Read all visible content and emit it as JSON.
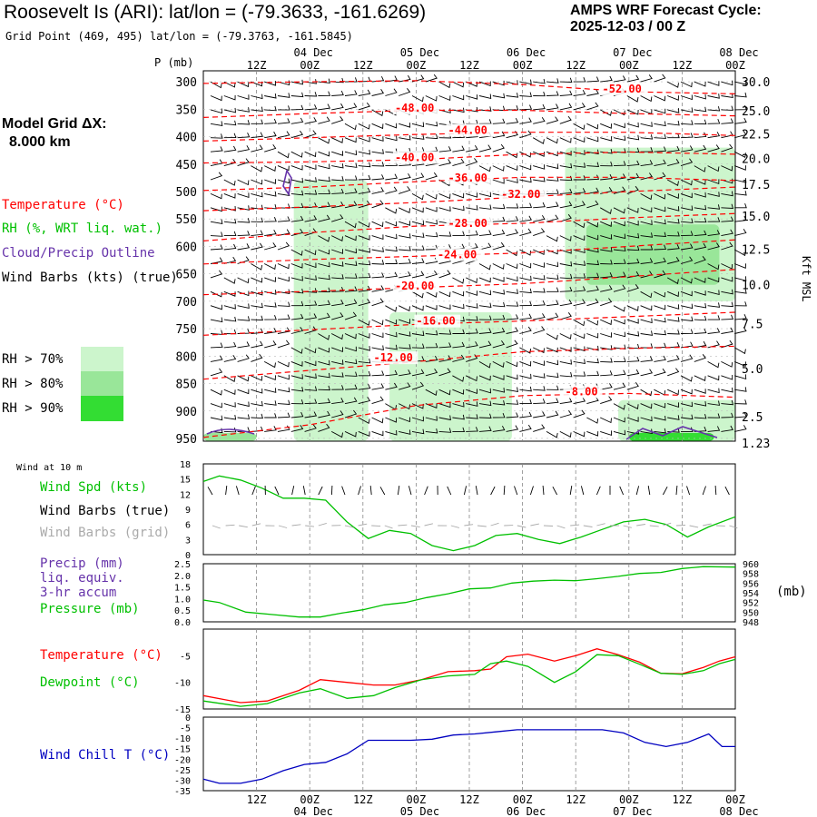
{
  "header": {
    "title": "Roosevelt Is (ARI):  lat/lon = (-79.3633, -161.6269)",
    "grid_point": "Grid Point (469, 495) lat/lon = (-79.3763, -161.5845)",
    "forecast_label": "AMPS WRF Forecast Cycle:",
    "forecast_cycle": "2025-12-03 / 00  Z",
    "model_grid_label": "Model Grid ΔX:",
    "model_grid_value": "8.000 km"
  },
  "colors": {
    "temperature": "#ff0000",
    "rh": "#00c000",
    "cloud": "#6633aa",
    "windchill": "#0000c0",
    "grid": "#888888",
    "rh70": "#ccf5cc",
    "rh80": "#99e699",
    "rh90": "#33dd33"
  },
  "legend": {
    "temperature": "Temperature (°C)",
    "rh": "RH (%, WRT liq. wat.)",
    "cloud": "Cloud/Precip Outline",
    "wind": "Wind Barbs (kts) (true)",
    "rh70": "RH > 70%",
    "rh80": "RH > 80%",
    "rh90": "RH > 90%"
  },
  "time_axis": {
    "ticks": [
      "12Z",
      "00Z",
      "12Z",
      "00Z",
      "12Z",
      "00Z",
      "12Z",
      "00Z",
      "12Z",
      "00Z"
    ],
    "dates": [
      "04 Dec",
      "05 Dec",
      "06 Dec",
      "07 Dec",
      "08 Dec"
    ]
  },
  "chart_data": [
    {
      "type": "line",
      "panel": "cross-section",
      "ylabel": "P (mb)",
      "right_label": "Kft MSL",
      "pressure_ticks": [
        300,
        350,
        400,
        450,
        500,
        550,
        600,
        650,
        700,
        750,
        800,
        850,
        900,
        950
      ],
      "height_ticks": [
        "30.0",
        "25.0",
        "22.5",
        "20.0",
        "17.5",
        "15.0",
        "12.5",
        "10.0",
        "7.5",
        "5.0",
        "2.5",
        "1.23"
      ],
      "isotherm_labels": [
        {
          "text": "-52.00",
          "t": 0.75,
          "p": 318
        },
        {
          "text": "-48.00",
          "t": 0.36,
          "p": 353
        },
        {
          "text": "-44.00",
          "t": 0.46,
          "p": 393
        },
        {
          "text": "-40.00",
          "t": 0.36,
          "p": 443
        },
        {
          "text": "-36.00",
          "t": 0.46,
          "p": 480
        },
        {
          "text": "-32.00",
          "t": 0.56,
          "p": 510
        },
        {
          "text": "-28.00",
          "t": 0.46,
          "p": 563
        },
        {
          "text": "-24.00",
          "t": 0.44,
          "p": 620
        },
        {
          "text": "-20.00",
          "t": 0.36,
          "p": 677
        },
        {
          "text": "-16.00",
          "t": 0.4,
          "p": 741
        },
        {
          "text": "-12.00",
          "t": 0.32,
          "p": 808
        },
        {
          "text": "-8.00",
          "t": 0.68,
          "p": 870
        }
      ],
      "series": [
        {
          "name": "-52",
          "t": [
            0,
            0.2,
            0.4,
            0.6,
            0.8,
            1.0
          ],
          "p": [
            303,
            300,
            298,
            305,
            318,
            322
          ]
        },
        {
          "name": "-48",
          "t": [
            0,
            0.2,
            0.4,
            0.6,
            0.8,
            1.0
          ],
          "p": [
            365,
            358,
            352,
            352,
            358,
            362
          ]
        },
        {
          "name": "-44",
          "t": [
            0,
            0.2,
            0.4,
            0.6,
            0.8,
            1.0
          ],
          "p": [
            408,
            402,
            396,
            392,
            392,
            398
          ]
        },
        {
          "name": "-40",
          "t": [
            0,
            0.2,
            0.4,
            0.6,
            0.8,
            1.0
          ],
          "p": [
            448,
            446,
            442,
            432,
            428,
            432
          ]
        },
        {
          "name": "-36",
          "t": [
            0,
            0.2,
            0.4,
            0.6,
            0.8,
            1.0
          ],
          "p": [
            498,
            492,
            482,
            474,
            474,
            480
          ]
        },
        {
          "name": "-32",
          "t": [
            0,
            0.2,
            0.4,
            0.6,
            0.8,
            1.0
          ],
          "p": [
            535,
            528,
            520,
            510,
            500,
            492
          ]
        },
        {
          "name": "-28",
          "t": [
            0,
            0.2,
            0.4,
            0.6,
            0.8,
            1.0
          ],
          "p": [
            590,
            575,
            563,
            558,
            548,
            540
          ]
        },
        {
          "name": "-24",
          "t": [
            0,
            0.2,
            0.4,
            0.6,
            0.8,
            1.0
          ],
          "p": [
            632,
            624,
            618,
            612,
            600,
            588
          ]
        },
        {
          "name": "-20",
          "t": [
            0,
            0.2,
            0.4,
            0.6,
            0.8,
            1.0
          ],
          "p": [
            688,
            682,
            675,
            668,
            655,
            642
          ]
        },
        {
          "name": "-16",
          "t": [
            0,
            0.2,
            0.4,
            0.6,
            0.8,
            1.0
          ],
          "p": [
            762,
            752,
            742,
            736,
            728,
            720
          ]
        },
        {
          "name": "-12",
          "t": [
            0,
            0.2,
            0.4,
            0.6,
            0.8,
            1.0
          ],
          "p": [
            842,
            826,
            810,
            792,
            786,
            782
          ]
        },
        {
          "name": "-8",
          "t": [
            0,
            0.2,
            0.4,
            0.6,
            0.8,
            1.0
          ],
          "p": [
            948,
            925,
            890,
            872,
            868,
            875
          ]
        }
      ],
      "rh_regions": [
        {
          "level": "rh70",
          "t0": 0.17,
          "t1": 0.31,
          "p0": 480,
          "p1": 955
        },
        {
          "level": "rh70",
          "t0": 0.35,
          "t1": 0.58,
          "p0": 720,
          "p1": 955
        },
        {
          "level": "rh70",
          "t0": 0.68,
          "t1": 1.0,
          "p0": 420,
          "p1": 700
        },
        {
          "level": "rh70",
          "t0": 0.78,
          "t1": 1.0,
          "p0": 880,
          "p1": 955
        },
        {
          "level": "rh80",
          "t0": 0.72,
          "t1": 0.97,
          "p0": 560,
          "p1": 670
        },
        {
          "level": "rh80",
          "t0": 0.0,
          "t1": 0.1,
          "p0": 940,
          "p1": 955
        },
        {
          "level": "rh90",
          "t0": 0.8,
          "t1": 0.96,
          "p0": 940,
          "p1": 955
        }
      ]
    },
    {
      "type": "line",
      "panel": "wind",
      "title": "Wind at 10 m",
      "label_speed": "Wind Spd (kts)",
      "label_barbs_true": "Wind Barbs (true)",
      "label_barbs_grid": "Wind Barbs (grid)",
      "y_ticks": [
        0,
        3,
        6,
        9,
        12,
        15,
        18
      ],
      "ylim": [
        0,
        18
      ],
      "x": [
        0,
        0.03,
        0.07,
        0.11,
        0.15,
        0.19,
        0.23,
        0.27,
        0.31,
        0.35,
        0.39,
        0.43,
        0.47,
        0.51,
        0.55,
        0.59,
        0.63,
        0.67,
        0.71,
        0.75,
        0.79,
        0.83,
        0.87,
        0.91,
        0.95,
        1.0
      ],
      "series": [
        {
          "name": "Wind Spd (kts)",
          "values": [
            14.5,
            15.6,
            14.8,
            13.2,
            11.2,
            11.2,
            10.8,
            6.5,
            3.2,
            4.8,
            4.2,
            1.8,
            0.8,
            1.8,
            3.8,
            4.2,
            3.0,
            2.2,
            3.5,
            5.0,
            6.5,
            7.0,
            6.0,
            3.5,
            5.5,
            7.5
          ]
        }
      ]
    },
    {
      "type": "line",
      "panel": "precip-pressure",
      "label_precip": "Precip (mm)",
      "label_precip_2": "liq. equiv.",
      "label_precip_3": "3-hr accum",
      "label_pressure": "Pressure (mb)",
      "unit_right": "(mb)",
      "left_ticks": [
        "0.0",
        "0.5",
        "1.0",
        "1.5",
        "2.0",
        "2.5"
      ],
      "right_ticks": [
        "948",
        "950",
        "952",
        "954",
        "956",
        "958",
        "960"
      ],
      "ylim": [
        948,
        960
      ],
      "x": [
        0,
        0.03,
        0.08,
        0.13,
        0.18,
        0.22,
        0.26,
        0.3,
        0.34,
        0.38,
        0.42,
        0.46,
        0.5,
        0.54,
        0.58,
        0.62,
        0.66,
        0.7,
        0.74,
        0.78,
        0.82,
        0.86,
        0.9,
        0.94,
        1.0
      ],
      "series": [
        {
          "name": "Pressure (mb)",
          "values": [
            952.5,
            952.0,
            950.0,
            949.5,
            949.0,
            949.0,
            949.8,
            950.5,
            951.5,
            952.0,
            953.0,
            953.8,
            954.8,
            955.0,
            956.0,
            956.4,
            956.6,
            956.5,
            956.9,
            957.4,
            958.0,
            958.2,
            959.0,
            959.4,
            959.3
          ]
        }
      ]
    },
    {
      "type": "line",
      "panel": "temperature",
      "label_temp": "Temperature (°C)",
      "label_dew": "Dewpoint (°C)",
      "y_ticks": [
        "-15",
        "-10",
        "-5"
      ],
      "ylim": [
        -15,
        0
      ],
      "x": [
        0,
        0.07,
        0.12,
        0.18,
        0.22,
        0.27,
        0.32,
        0.36,
        0.41,
        0.46,
        0.51,
        0.54,
        0.57,
        0.61,
        0.66,
        0.7,
        0.74,
        0.78,
        0.82,
        0.86,
        0.9,
        0.94,
        0.97,
        1.0
      ],
      "series": [
        {
          "name": "Temperature (°C)",
          "values": [
            -12.5,
            -13.8,
            -13.5,
            -11.5,
            -9.5,
            -10.0,
            -10.5,
            -10.5,
            -9.5,
            -8.0,
            -7.8,
            -7.5,
            -5.2,
            -4.7,
            -6.0,
            -5.0,
            -3.7,
            -4.8,
            -6.2,
            -8.3,
            -8.4,
            -7.2,
            -6.0,
            -5.2
          ]
        },
        {
          "name": "Dewpoint (°C)",
          "values": [
            -13.5,
            -14.5,
            -14.0,
            -12.0,
            -11.2,
            -13.0,
            -12.5,
            -11.0,
            -9.5,
            -8.8,
            -8.5,
            -6.5,
            -6.0,
            -7.0,
            -10.0,
            -8.0,
            -4.8,
            -5.0,
            -6.6,
            -8.3,
            -8.5,
            -7.8,
            -6.5,
            -5.7
          ]
        }
      ]
    },
    {
      "type": "line",
      "panel": "windchill",
      "label": "Wind Chill T (°C)",
      "y_ticks": [
        "-35",
        "-30",
        "-25",
        "-20",
        "-15",
        "-10",
        "-5",
        "0"
      ],
      "ylim": [
        -35,
        0
      ],
      "x": [
        0,
        0.03,
        0.07,
        0.11,
        0.15,
        0.19,
        0.23,
        0.27,
        0.31,
        0.35,
        0.39,
        0.43,
        0.47,
        0.51,
        0.55,
        0.59,
        0.63,
        0.67,
        0.71,
        0.75,
        0.79,
        0.83,
        0.87,
        0.91,
        0.95,
        0.975,
        1.0
      ],
      "series": [
        {
          "name": "Wind Chill T (°C)",
          "values": [
            -29.5,
            -31.5,
            -31.5,
            -29.5,
            -25.5,
            -22.5,
            -21.5,
            -17.5,
            -11.0,
            -11.0,
            -11.0,
            -10.5,
            -8.5,
            -8.0,
            -7.0,
            -6.0,
            -6.0,
            -6.0,
            -6.0,
            -6.0,
            -7.5,
            -12.0,
            -14.0,
            -12.0,
            -8.0,
            -14.0,
            -14.0
          ]
        }
      ]
    }
  ]
}
